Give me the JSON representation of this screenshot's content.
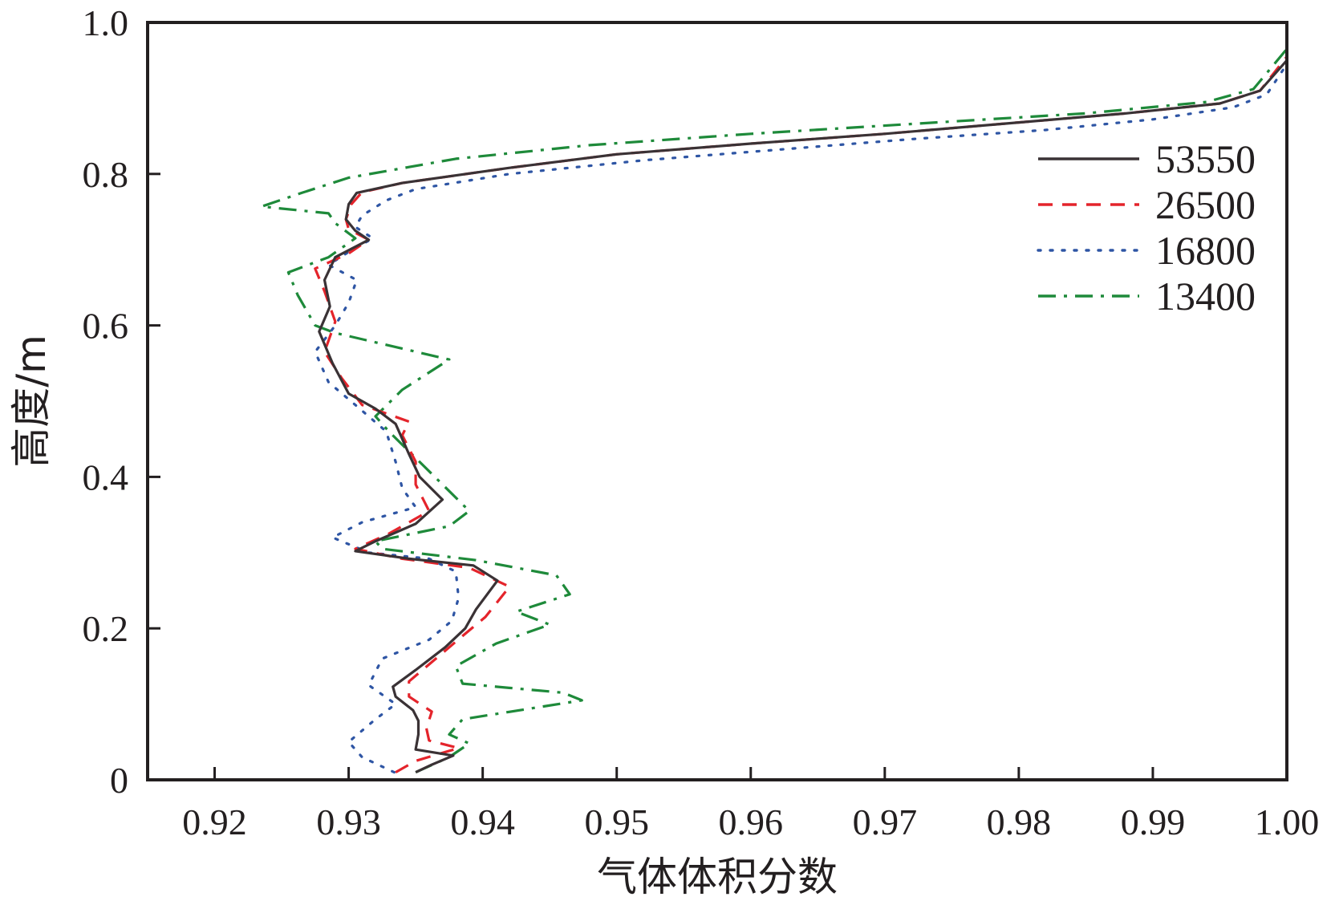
{
  "chart_data": {
    "type": "line",
    "xlabel": "气体体积分数",
    "ylabel": "高度/m",
    "xlim": [
      0.915,
      1.0
    ],
    "ylim": [
      0,
      1.0
    ],
    "xticks": [
      "0.92",
      "0.93",
      "0.94",
      "0.95",
      "0.96",
      "0.97",
      "0.98",
      "0.99",
      "1.00"
    ],
    "yticks": [
      "0",
      "0.2",
      "0.4",
      "0.6",
      "0.8",
      "1.0"
    ],
    "legend_position": "top-right",
    "series": [
      {
        "name": "53550",
        "color": "#3a3235",
        "style": "solid",
        "points": [
          [
            0.935,
            0.01
          ],
          [
            0.9362,
            0.02
          ],
          [
            0.9378,
            0.032
          ],
          [
            0.935,
            0.04
          ],
          [
            0.9352,
            0.06
          ],
          [
            0.9352,
            0.078
          ],
          [
            0.9348,
            0.092
          ],
          [
            0.9335,
            0.11
          ],
          [
            0.9333,
            0.123
          ],
          [
            0.935,
            0.145
          ],
          [
            0.9372,
            0.175
          ],
          [
            0.9387,
            0.2
          ],
          [
            0.9395,
            0.225
          ],
          [
            0.9411,
            0.263
          ],
          [
            0.9393,
            0.283
          ],
          [
            0.9345,
            0.292
          ],
          [
            0.9305,
            0.302
          ],
          [
            0.932,
            0.315
          ],
          [
            0.935,
            0.338
          ],
          [
            0.937,
            0.37
          ],
          [
            0.9353,
            0.4
          ],
          [
            0.9345,
            0.43
          ],
          [
            0.9335,
            0.47
          ],
          [
            0.932,
            0.49
          ],
          [
            0.93,
            0.51
          ],
          [
            0.9288,
            0.55
          ],
          [
            0.9278,
            0.592
          ],
          [
            0.9286,
            0.625
          ],
          [
            0.9282,
            0.66
          ],
          [
            0.929,
            0.69
          ],
          [
            0.9315,
            0.713
          ],
          [
            0.9305,
            0.725
          ],
          [
            0.9298,
            0.74
          ],
          [
            0.93,
            0.76
          ],
          [
            0.9306,
            0.775
          ],
          [
            0.934,
            0.788
          ],
          [
            0.942,
            0.808
          ],
          [
            0.95,
            0.826
          ],
          [
            0.96,
            0.84
          ],
          [
            0.97,
            0.853
          ],
          [
            0.98,
            0.868
          ],
          [
            0.988,
            0.88
          ],
          [
            0.995,
            0.893
          ],
          [
            0.998,
            0.91
          ],
          [
            1.0,
            0.95
          ]
        ]
      },
      {
        "name": "26500",
        "color": "#e4242b",
        "style": "dashed",
        "points": [
          [
            0.9335,
            0.01
          ],
          [
            0.935,
            0.025
          ],
          [
            0.9382,
            0.042
          ],
          [
            0.936,
            0.052
          ],
          [
            0.9358,
            0.068
          ],
          [
            0.9362,
            0.09
          ],
          [
            0.9345,
            0.11
          ],
          [
            0.9345,
            0.13
          ],
          [
            0.9365,
            0.16
          ],
          [
            0.9385,
            0.19
          ],
          [
            0.9402,
            0.215
          ],
          [
            0.942,
            0.255
          ],
          [
            0.939,
            0.28
          ],
          [
            0.934,
            0.292
          ],
          [
            0.9305,
            0.305
          ],
          [
            0.933,
            0.325
          ],
          [
            0.936,
            0.355
          ],
          [
            0.935,
            0.39
          ],
          [
            0.935,
            0.42
          ],
          [
            0.934,
            0.455
          ],
          [
            0.9345,
            0.473
          ],
          [
            0.931,
            0.495
          ],
          [
            0.9295,
            0.53
          ],
          [
            0.9282,
            0.565
          ],
          [
            0.929,
            0.605
          ],
          [
            0.9282,
            0.645
          ],
          [
            0.9275,
            0.675
          ],
          [
            0.93,
            0.695
          ],
          [
            0.9315,
            0.713
          ],
          [
            0.93,
            0.727
          ],
          [
            0.9298,
            0.74
          ],
          [
            0.9302,
            0.76
          ],
          [
            0.931,
            0.776
          ],
          [
            0.934,
            0.788
          ],
          [
            0.942,
            0.808
          ],
          [
            0.95,
            0.826
          ],
          [
            0.96,
            0.84
          ],
          [
            0.97,
            0.853
          ],
          [
            0.98,
            0.868
          ],
          [
            0.988,
            0.88
          ],
          [
            0.995,
            0.893
          ],
          [
            0.998,
            0.91
          ],
          [
            1.0,
            0.955
          ]
        ]
      },
      {
        "name": "16800",
        "color": "#2e55a4",
        "style": "dotted",
        "points": [
          [
            0.9334,
            0.01
          ],
          [
            0.931,
            0.03
          ],
          [
            0.93,
            0.05
          ],
          [
            0.932,
            0.08
          ],
          [
            0.9335,
            0.1
          ],
          [
            0.9315,
            0.125
          ],
          [
            0.9325,
            0.16
          ],
          [
            0.936,
            0.185
          ],
          [
            0.9377,
            0.21
          ],
          [
            0.9382,
            0.24
          ],
          [
            0.938,
            0.275
          ],
          [
            0.936,
            0.292
          ],
          [
            0.9315,
            0.3
          ],
          [
            0.9288,
            0.32
          ],
          [
            0.931,
            0.34
          ],
          [
            0.935,
            0.36
          ],
          [
            0.934,
            0.385
          ],
          [
            0.9335,
            0.42
          ],
          [
            0.9328,
            0.46
          ],
          [
            0.9305,
            0.495
          ],
          [
            0.9285,
            0.525
          ],
          [
            0.9275,
            0.565
          ],
          [
            0.929,
            0.6
          ],
          [
            0.93,
            0.63
          ],
          [
            0.9306,
            0.66
          ],
          [
            0.9285,
            0.68
          ],
          [
            0.93,
            0.697
          ],
          [
            0.9318,
            0.715
          ],
          [
            0.9305,
            0.73
          ],
          [
            0.931,
            0.745
          ],
          [
            0.9328,
            0.765
          ],
          [
            0.935,
            0.78
          ],
          [
            0.942,
            0.8
          ],
          [
            0.952,
            0.818
          ],
          [
            0.962,
            0.832
          ],
          [
            0.972,
            0.846
          ],
          [
            0.982,
            0.858
          ],
          [
            0.99,
            0.872
          ],
          [
            0.996,
            0.888
          ],
          [
            0.9985,
            0.905
          ],
          [
            1.0,
            0.945
          ]
        ]
      },
      {
        "name": "13400",
        "color": "#1e8a3a",
        "style": "dashdot",
        "points": [
          [
            0.935,
            0.01
          ],
          [
            0.9375,
            0.03
          ],
          [
            0.939,
            0.048
          ],
          [
            0.9375,
            0.06
          ],
          [
            0.9385,
            0.08
          ],
          [
            0.9474,
            0.105
          ],
          [
            0.946,
            0.115
          ],
          [
            0.9385,
            0.127
          ],
          [
            0.938,
            0.15
          ],
          [
            0.941,
            0.18
          ],
          [
            0.945,
            0.205
          ],
          [
            0.9425,
            0.222
          ],
          [
            0.9465,
            0.245
          ],
          [
            0.9455,
            0.27
          ],
          [
            0.9395,
            0.29
          ],
          [
            0.9325,
            0.305
          ],
          [
            0.932,
            0.315
          ],
          [
            0.9375,
            0.335
          ],
          [
            0.939,
            0.355
          ],
          [
            0.937,
            0.39
          ],
          [
            0.935,
            0.425
          ],
          [
            0.933,
            0.46
          ],
          [
            0.932,
            0.48
          ],
          [
            0.934,
            0.515
          ],
          [
            0.9375,
            0.555
          ],
          [
            0.929,
            0.59
          ],
          [
            0.9275,
            0.6
          ],
          [
            0.9262,
            0.64
          ],
          [
            0.9255,
            0.67
          ],
          [
            0.9285,
            0.69
          ],
          [
            0.9305,
            0.715
          ],
          [
            0.929,
            0.735
          ],
          [
            0.9285,
            0.748
          ],
          [
            0.9235,
            0.757
          ],
          [
            0.9265,
            0.775
          ],
          [
            0.93,
            0.795
          ],
          [
            0.938,
            0.82
          ],
          [
            0.948,
            0.838
          ],
          [
            0.96,
            0.853
          ],
          [
            0.972,
            0.866
          ],
          [
            0.985,
            0.88
          ],
          [
            0.994,
            0.895
          ],
          [
            0.9975,
            0.912
          ],
          [
            1.0,
            0.965
          ]
        ]
      }
    ]
  }
}
